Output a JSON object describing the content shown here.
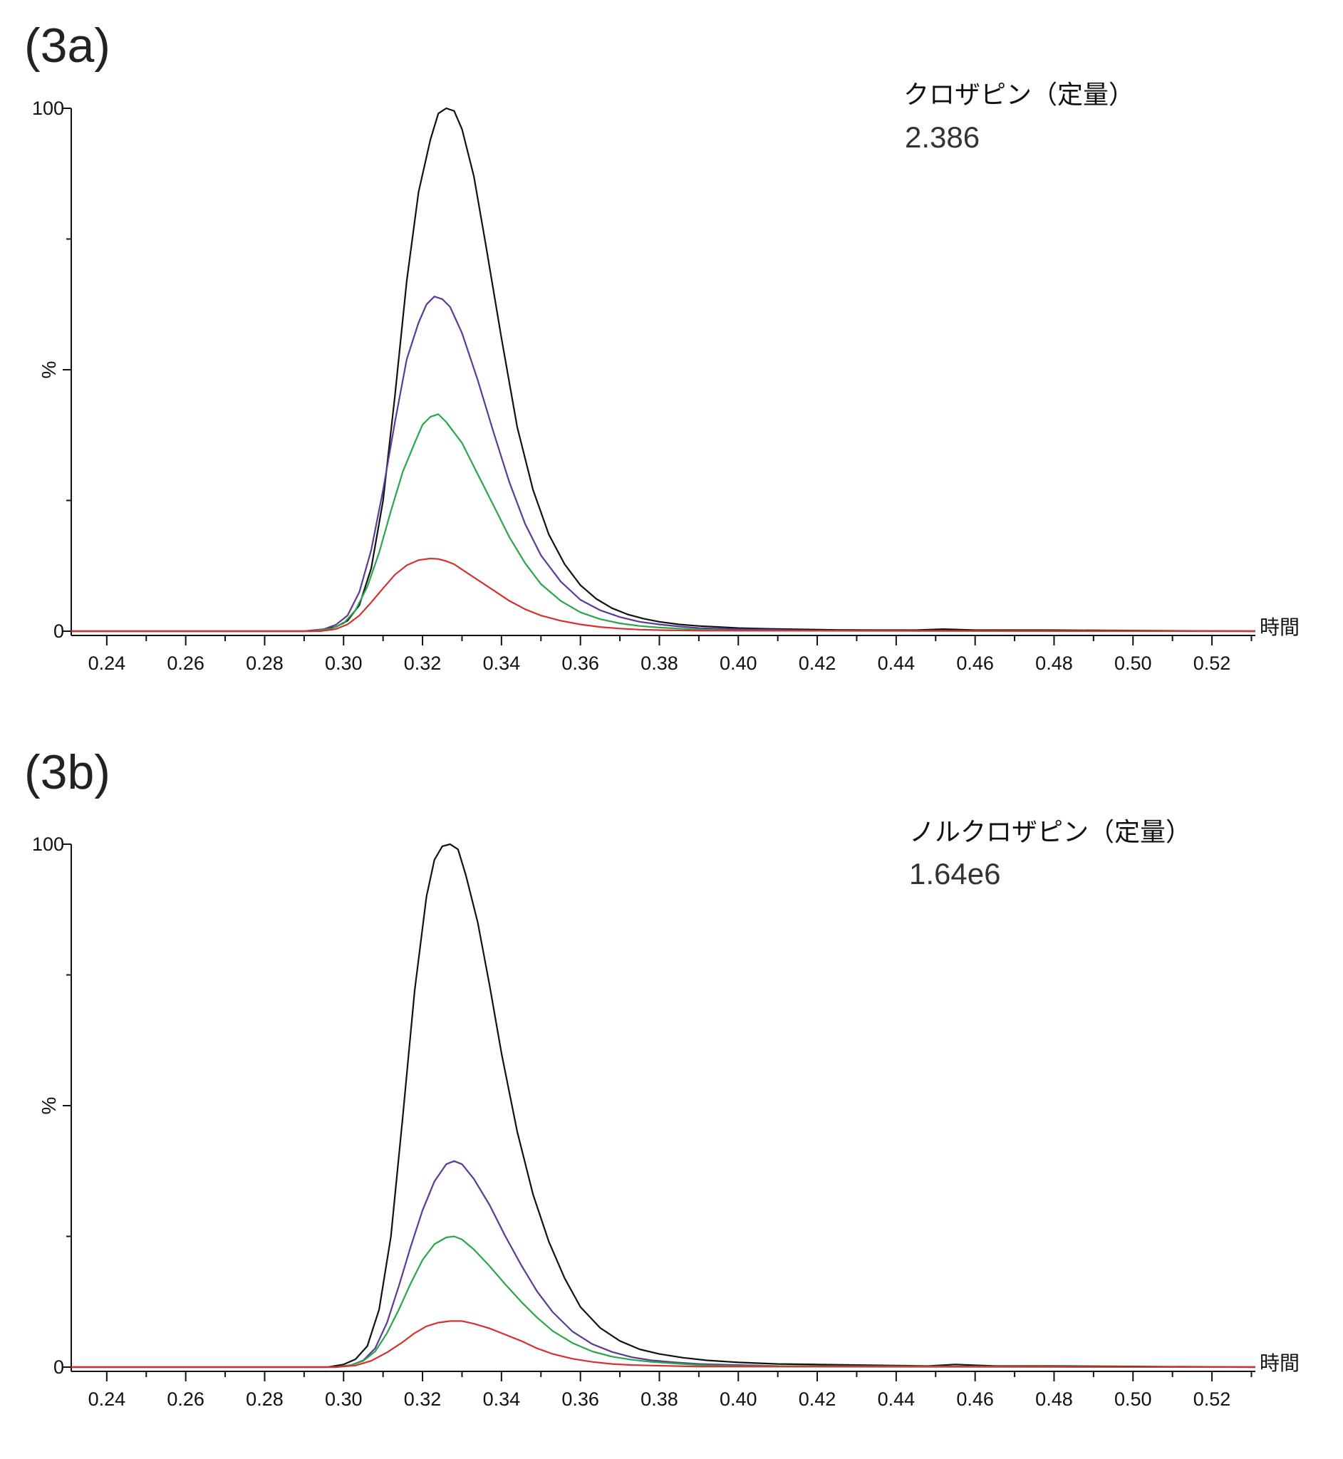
{
  "chart_data": [
    {
      "type": "line",
      "panel_label": "(3a)",
      "compound": "クロザピン（定量）",
      "value_label": "2.386",
      "xlabel": "時間",
      "ylabel": "%",
      "xlim": [
        0.231,
        0.531
      ],
      "ylim": [
        0,
        100
      ],
      "xticks": [
        "0.24",
        "0.26",
        "0.28",
        "0.30",
        "0.32",
        "0.34",
        "0.36",
        "0.38",
        "0.40",
        "0.42",
        "0.44",
        "0.46",
        "0.48",
        "0.50",
        "0.52"
      ],
      "xtick_values": [
        0.24,
        0.26,
        0.28,
        0.3,
        0.32,
        0.34,
        0.36,
        0.38,
        0.4,
        0.42,
        0.44,
        0.46,
        0.48,
        0.5,
        0.52
      ],
      "yticks": [
        "0",
        "100"
      ],
      "ytick_values": [
        0,
        100
      ],
      "series": [
        {
          "color": "#111111",
          "x": [
            0.231,
            0.29,
            0.295,
            0.298,
            0.301,
            0.304,
            0.307,
            0.31,
            0.313,
            0.316,
            0.319,
            0.322,
            0.324,
            0.326,
            0.328,
            0.33,
            0.333,
            0.336,
            0.34,
            0.344,
            0.348,
            0.352,
            0.356,
            0.36,
            0.364,
            0.368,
            0.372,
            0.376,
            0.38,
            0.385,
            0.39,
            0.395,
            0.4,
            0.408,
            0.415,
            0.425,
            0.435,
            0.445,
            0.452,
            0.46,
            0.47,
            0.478,
            0.531
          ],
          "y": [
            0,
            0,
            0.3,
            0.8,
            2.0,
            5.0,
            12,
            25,
            45,
            67,
            84,
            94,
            99,
            100,
            99.5,
            96,
            87,
            74,
            56,
            39,
            27,
            18.5,
            12.8,
            8.8,
            6.2,
            4.4,
            3.2,
            2.4,
            1.8,
            1.3,
            1.0,
            0.8,
            0.6,
            0.45,
            0.35,
            0.25,
            0.2,
            0.2,
            0.4,
            0.2,
            0.2,
            0.2,
            0
          ]
        },
        {
          "color": "#5b3a96",
          "x": [
            0.231,
            0.29,
            0.295,
            0.298,
            0.301,
            0.304,
            0.307,
            0.31,
            0.313,
            0.316,
            0.319,
            0.321,
            0.323,
            0.325,
            0.327,
            0.33,
            0.334,
            0.338,
            0.342,
            0.346,
            0.35,
            0.355,
            0.36,
            0.365,
            0.37,
            0.375,
            0.38,
            0.385,
            0.39,
            0.398,
            0.41,
            0.42,
            0.531
          ],
          "y": [
            0,
            0,
            0.4,
            1.2,
            3.0,
            7.5,
            15.5,
            27,
            40,
            52,
            59,
            62.5,
            64,
            63.5,
            62,
            57,
            48,
            38,
            28.5,
            20.5,
            14.5,
            9.5,
            6.0,
            4.0,
            2.7,
            1.8,
            1.3,
            0.9,
            0.6,
            0.4,
            0.25,
            0.1,
            0
          ]
        },
        {
          "color": "#2aa64a",
          "x": [
            0.231,
            0.292,
            0.297,
            0.3,
            0.303,
            0.306,
            0.309,
            0.312,
            0.315,
            0.318,
            0.32,
            0.322,
            0.324,
            0.326,
            0.33,
            0.334,
            0.338,
            0.342,
            0.346,
            0.35,
            0.355,
            0.36,
            0.365,
            0.37,
            0.375,
            0.38,
            0.39,
            0.4,
            0.531
          ],
          "y": [
            0,
            0,
            0.5,
            1.5,
            4.0,
            8.5,
            15,
            23,
            30.5,
            36,
            39.5,
            41,
            41.5,
            40,
            36,
            30,
            24,
            18,
            13,
            9,
            5.8,
            3.6,
            2.3,
            1.5,
            1.0,
            0.7,
            0.3,
            0.1,
            0
          ]
        },
        {
          "color": "#d63030",
          "x": [
            0.231,
            0.294,
            0.298,
            0.301,
            0.304,
            0.307,
            0.31,
            0.313,
            0.316,
            0.319,
            0.322,
            0.324,
            0.326,
            0.328,
            0.33,
            0.334,
            0.338,
            0.342,
            0.346,
            0.35,
            0.355,
            0.36,
            0.365,
            0.37,
            0.375,
            0.38,
            0.39,
            0.531
          ],
          "y": [
            0,
            0,
            0.4,
            1.3,
            3.0,
            5.5,
            8.2,
            10.8,
            12.6,
            13.6,
            13.9,
            13.8,
            13.4,
            12.8,
            11.8,
            9.8,
            7.8,
            5.8,
            4.2,
            3.0,
            2.0,
            1.3,
            0.8,
            0.5,
            0.3,
            0.2,
            0.1,
            0
          ]
        }
      ]
    },
    {
      "type": "line",
      "panel_label": "(3b)",
      "compound": "ノルクロザピン（定量）",
      "value_label": "1.64e6",
      "xlabel": "時間",
      "ylabel": "%",
      "xlim": [
        0.231,
        0.531
      ],
      "ylim": [
        0,
        100
      ],
      "xticks": [
        "0.24",
        "0.26",
        "0.28",
        "0.30",
        "0.32",
        "0.34",
        "0.36",
        "0.38",
        "0.40",
        "0.42",
        "0.44",
        "0.46",
        "0.48",
        "0.50",
        "0.52"
      ],
      "xtick_values": [
        0.24,
        0.26,
        0.28,
        0.3,
        0.32,
        0.34,
        0.36,
        0.38,
        0.4,
        0.42,
        0.44,
        0.46,
        0.48,
        0.5,
        0.52
      ],
      "yticks": [
        "0",
        "100"
      ],
      "ytick_values": [
        0,
        100
      ],
      "series": [
        {
          "color": "#111111",
          "x": [
            0.231,
            0.296,
            0.3,
            0.303,
            0.306,
            0.309,
            0.312,
            0.315,
            0.318,
            0.321,
            0.323,
            0.325,
            0.327,
            0.329,
            0.331,
            0.334,
            0.337,
            0.34,
            0.344,
            0.348,
            0.352,
            0.356,
            0.36,
            0.365,
            0.37,
            0.375,
            0.38,
            0.386,
            0.392,
            0.4,
            0.41,
            0.42,
            0.43,
            0.44,
            0.448,
            0.455,
            0.465,
            0.48,
            0.531
          ],
          "y": [
            0,
            0,
            0.5,
            1.5,
            4.0,
            11,
            25,
            48,
            72,
            90,
            97,
            99.6,
            100,
            99,
            94,
            85,
            73,
            60,
            45,
            33,
            24,
            17,
            11.5,
            7.5,
            5.0,
            3.4,
            2.5,
            1.8,
            1.3,
            0.9,
            0.6,
            0.5,
            0.4,
            0.3,
            0.2,
            0.5,
            0.2,
            0.2,
            0
          ]
        },
        {
          "color": "#5b3a96",
          "x": [
            0.231,
            0.298,
            0.302,
            0.305,
            0.308,
            0.311,
            0.314,
            0.317,
            0.32,
            0.323,
            0.326,
            0.328,
            0.33,
            0.333,
            0.337,
            0.341,
            0.345,
            0.349,
            0.353,
            0.358,
            0.363,
            0.368,
            0.373,
            0.378,
            0.384,
            0.39,
            0.4,
            0.41,
            0.531
          ],
          "y": [
            0,
            0,
            0.4,
            1.3,
            3.6,
            8.5,
            15.5,
            23,
            30,
            35.5,
            38.8,
            39.4,
            38.8,
            36,
            31,
            25,
            19.5,
            14.5,
            10.5,
            6.8,
            4.4,
            2.9,
            1.9,
            1.3,
            0.9,
            0.6,
            0.4,
            0.2,
            0
          ]
        },
        {
          "color": "#2aa64a",
          "x": [
            0.231,
            0.298,
            0.302,
            0.305,
            0.308,
            0.311,
            0.314,
            0.317,
            0.32,
            0.323,
            0.326,
            0.328,
            0.33,
            0.333,
            0.337,
            0.341,
            0.345,
            0.349,
            0.353,
            0.358,
            0.363,
            0.368,
            0.373,
            0.378,
            0.384,
            0.39,
            0.4,
            0.531
          ],
          "y": [
            0,
            0,
            0.4,
            1.2,
            3.0,
            6.5,
            11,
            16,
            20.5,
            23.5,
            24.8,
            25,
            24.4,
            22.5,
            19.3,
            15.8,
            12.5,
            9.5,
            6.9,
            4.6,
            3.0,
            2.0,
            1.4,
            1.0,
            0.7,
            0.4,
            0.2,
            0
          ]
        },
        {
          "color": "#d63030",
          "x": [
            0.231,
            0.298,
            0.303,
            0.307,
            0.311,
            0.315,
            0.318,
            0.321,
            0.324,
            0.327,
            0.33,
            0.333,
            0.337,
            0.341,
            0.345,
            0.349,
            0.353,
            0.358,
            0.363,
            0.368,
            0.373,
            0.378,
            0.384,
            0.39,
            0.531
          ],
          "y": [
            0,
            0,
            0.3,
            1.2,
            2.8,
            4.8,
            6.5,
            7.8,
            8.5,
            8.8,
            8.8,
            8.3,
            7.4,
            6.2,
            5.0,
            3.6,
            2.5,
            1.6,
            1.0,
            0.6,
            0.4,
            0.3,
            0.2,
            0.1,
            0
          ]
        }
      ]
    }
  ]
}
